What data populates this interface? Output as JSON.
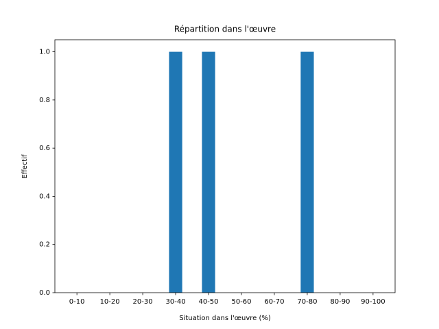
{
  "chart_data": {
    "type": "bar",
    "title": "Répartition dans l'œuvre",
    "xlabel": "Situation dans l'œuvre (%)",
    "ylabel": "Effectif",
    "categories": [
      "0-10",
      "10-20",
      "20-30",
      "30-40",
      "40-50",
      "50-60",
      "60-70",
      "70-80",
      "80-90",
      "90-100"
    ],
    "values": [
      0,
      0,
      0,
      1,
      1,
      0,
      0,
      1,
      0,
      0
    ],
    "color": "#1f77b4",
    "ylim": [
      0,
      1.05
    ],
    "yticks": [
      {
        "value": 0,
        "label": "0.0"
      },
      0.2,
      0.4,
      0.6,
      0.8,
      {
        "value": 1,
        "label": "1.0"
      }
    ],
    "grid": false
  }
}
